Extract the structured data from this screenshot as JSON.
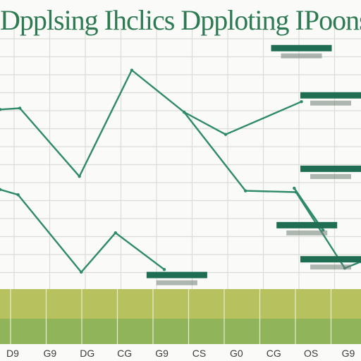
{
  "colors": {
    "line": "#2f8a6c",
    "title": "#2e7a52",
    "label_bar": "#1f6d52",
    "band_top": "#b7c25e",
    "band_bottom": "#8fb45a",
    "grid": "#dcdcd8",
    "tick_text": "#3a3a3a"
  },
  "chart_data": {
    "type": "line",
    "title": "Dpplsing Ihclics Dpploting IPoons",
    "xlabel": "",
    "ylabel": "",
    "x_ticks": [
      "D9",
      "G9",
      "DG",
      "CG",
      "G9",
      "CS",
      "G0",
      "CG",
      "OS",
      "G9"
    ],
    "xlim": [
      0,
      10
    ],
    "ylim": [
      0,
      10
    ],
    "grid": true,
    "legend": "none",
    "series": [
      {
        "values": [
          {
            "x": 0.0,
            "y": 6.9
          },
          {
            "x": 0.55,
            "y": 6.95
          },
          {
            "x": 2.2,
            "y": 4.35
          },
          {
            "x": 3.65,
            "y": 8.4
          },
          {
            "x": 5.1,
            "y": 6.8
          },
          {
            "x": 6.8,
            "y": 3.8
          },
          {
            "x": 8.2,
            "y": 3.75
          },
          {
            "x": 9.55,
            "y": 0.85
          },
          {
            "x": 10.0,
            "y": 1.1
          }
        ]
      },
      {
        "values": [
          {
            "x": 0.0,
            "y": 3.85
          },
          {
            "x": 0.5,
            "y": 3.65
          },
          {
            "x": 2.25,
            "y": 0.7
          },
          {
            "x": 3.2,
            "y": 2.2
          },
          {
            "x": 4.55,
            "y": 0.8
          }
        ]
      },
      {
        "values": [
          {
            "x": 5.1,
            "y": 6.8
          },
          {
            "x": 6.25,
            "y": 5.95
          },
          {
            "x": 8.35,
            "y": 7.2
          }
        ]
      },
      {
        "values": [
          {
            "x": 8.15,
            "y": 3.9
          },
          {
            "x": 8.95,
            "y": 2.3
          }
        ]
      }
    ],
    "annotations": [
      {
        "x": 8.35,
        "y": 9.2
      },
      {
        "x": 9.55,
        "y": 7.4
      },
      {
        "x": 9.2,
        "y": 4.6
      },
      {
        "x": 8.5,
        "y": 2.45
      },
      {
        "x": 4.9,
        "y": 0.55
      },
      {
        "x": 9.8,
        "y": 1.15
      }
    ]
  }
}
